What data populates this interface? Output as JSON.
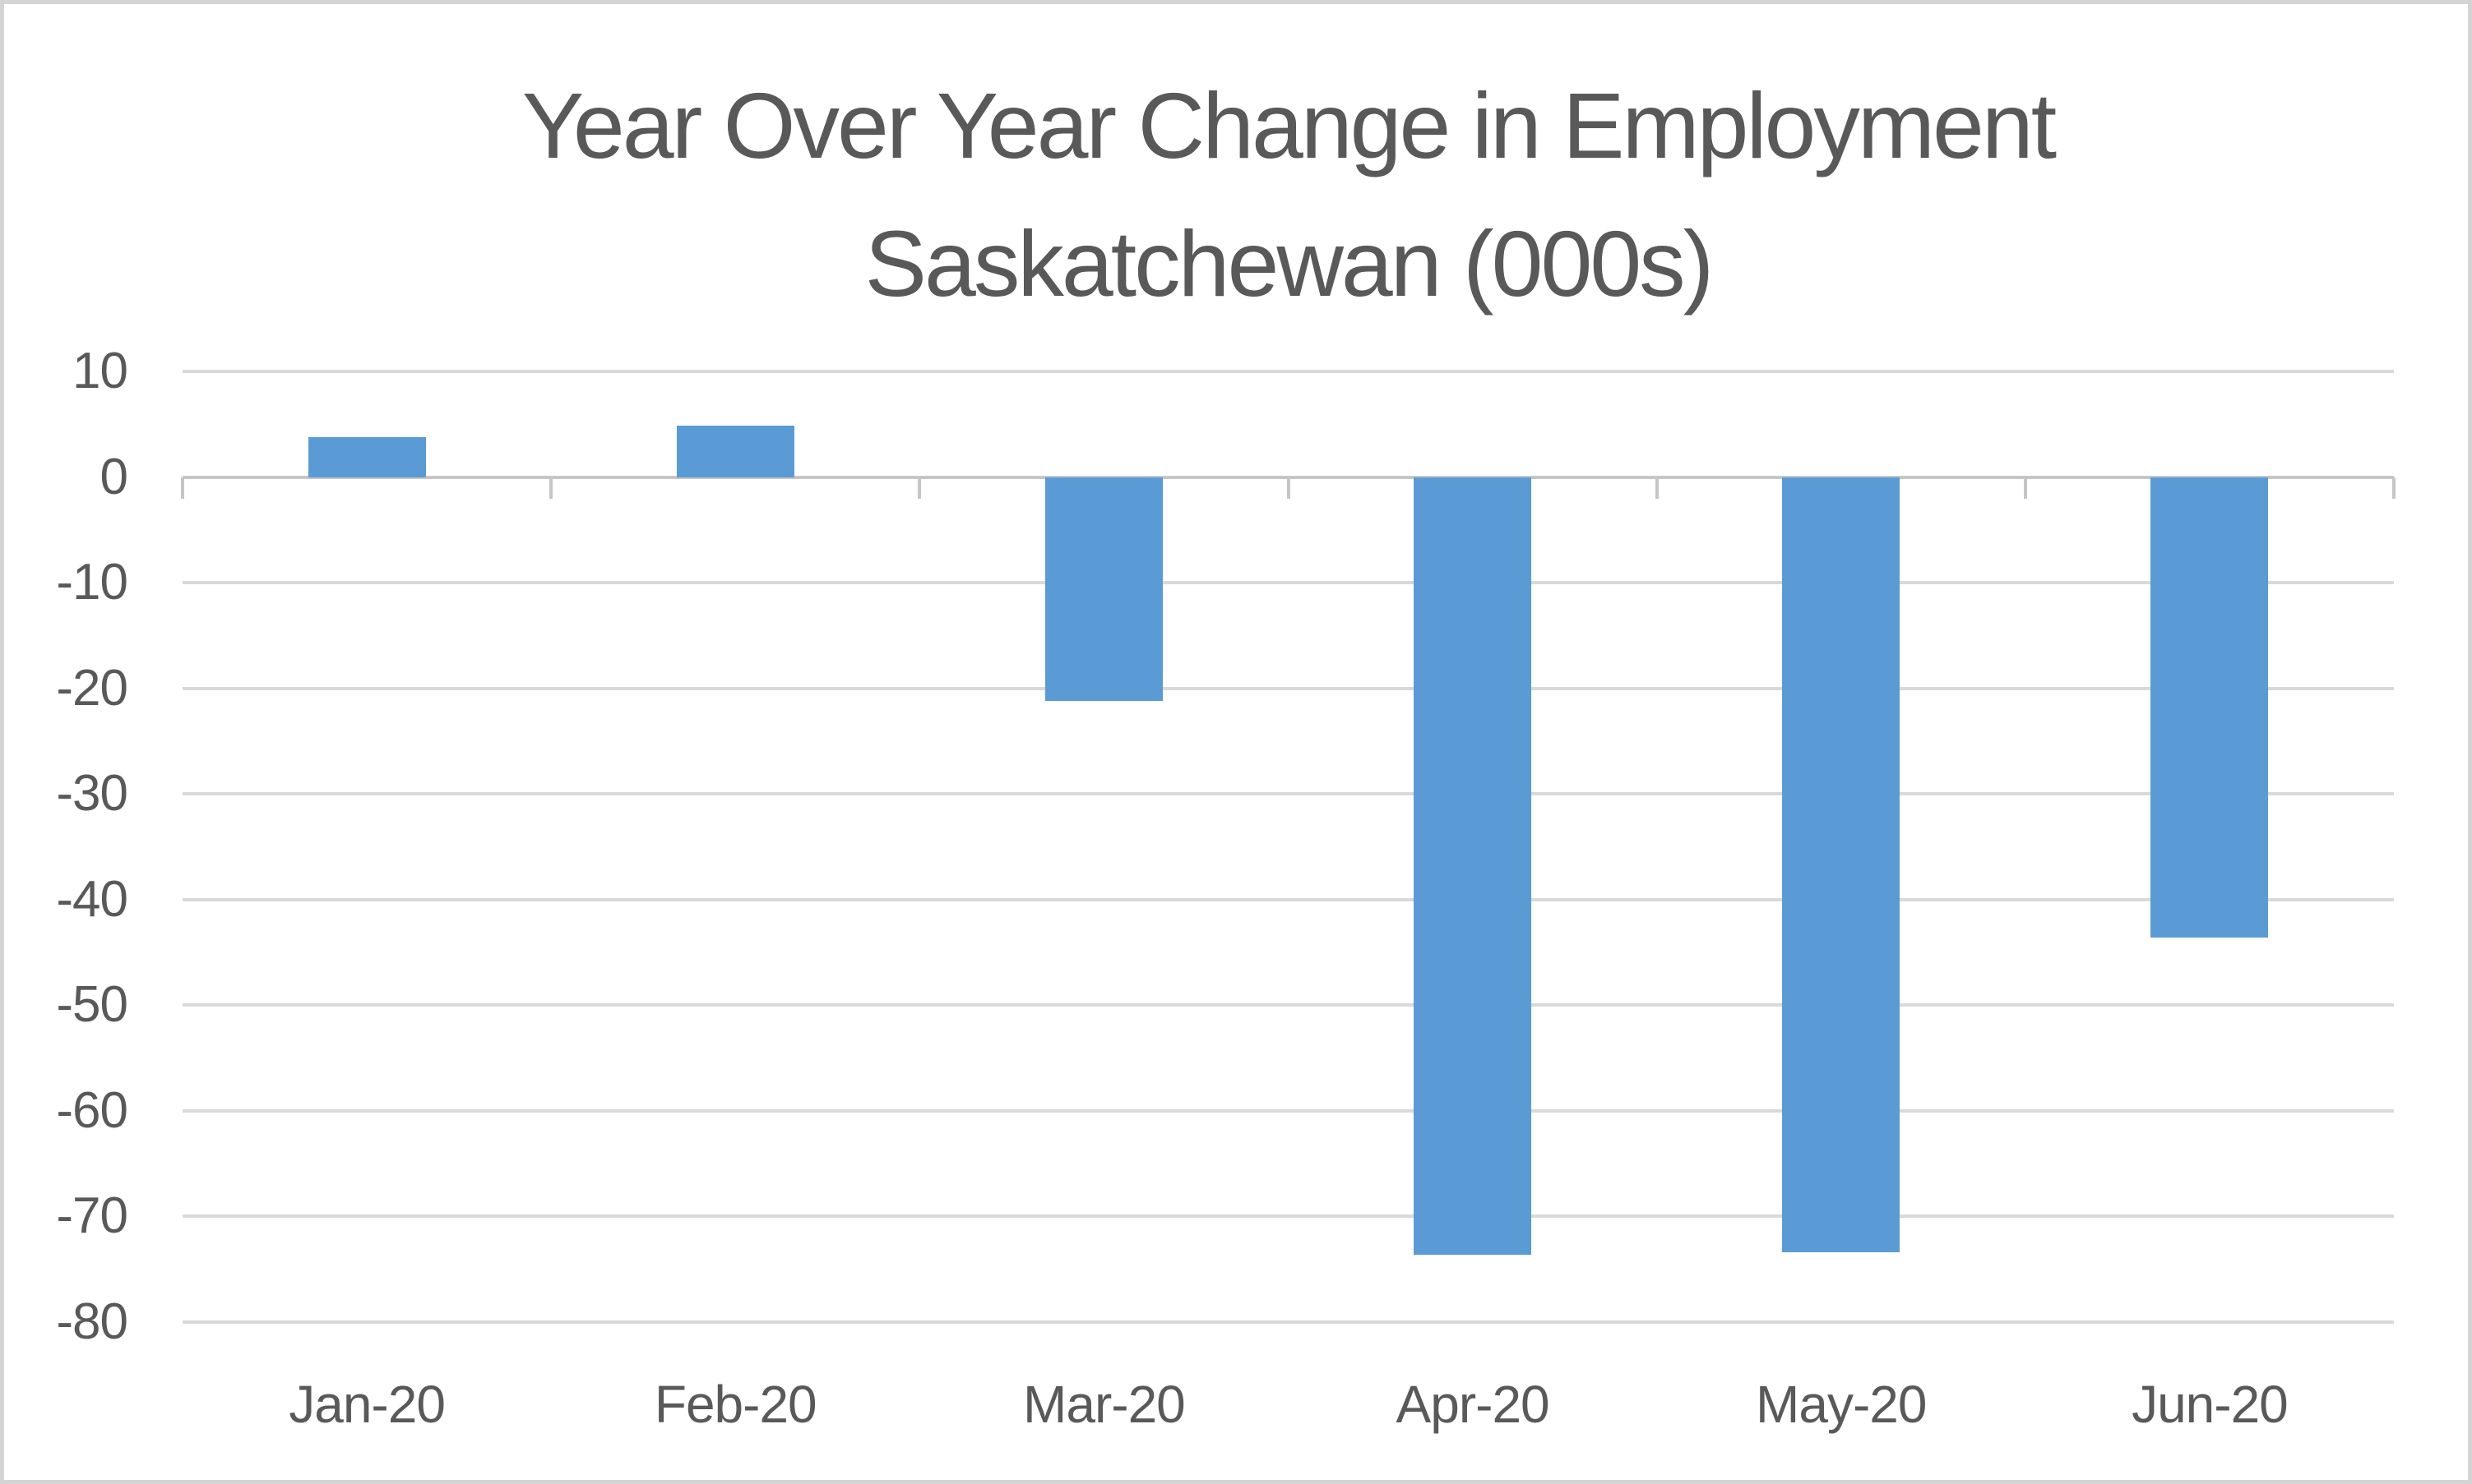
{
  "chart_data": {
    "type": "bar",
    "title": "Year Over Year Change in Employment Saskatchewan (000s)",
    "title_lines": [
      "Year Over Year Change in Employment",
      "Saskatchewan (000s)"
    ],
    "categories": [
      "Jan-20",
      "Feb-20",
      "Mar-20",
      "Apr-20",
      "May-20",
      "Jun-20"
    ],
    "values": [
      3.8,
      4.9,
      -21.2,
      -73.6,
      -73.4,
      -43.6
    ],
    "ylim": [
      -80,
      10
    ],
    "yticks": [
      10,
      0,
      -10,
      -20,
      -30,
      -40,
      -50,
      -60,
      -70,
      -80
    ],
    "grid": true,
    "legend_position": "none",
    "xlabel": "",
    "ylabel": "",
    "colors": {
      "bar": "#5B9BD5",
      "gridline": "#D9D9D9",
      "axis_line": "#C6C6C6",
      "text": "#595959",
      "canvas_border": "#D4D4D4",
      "background": "#FFFFFF"
    }
  }
}
